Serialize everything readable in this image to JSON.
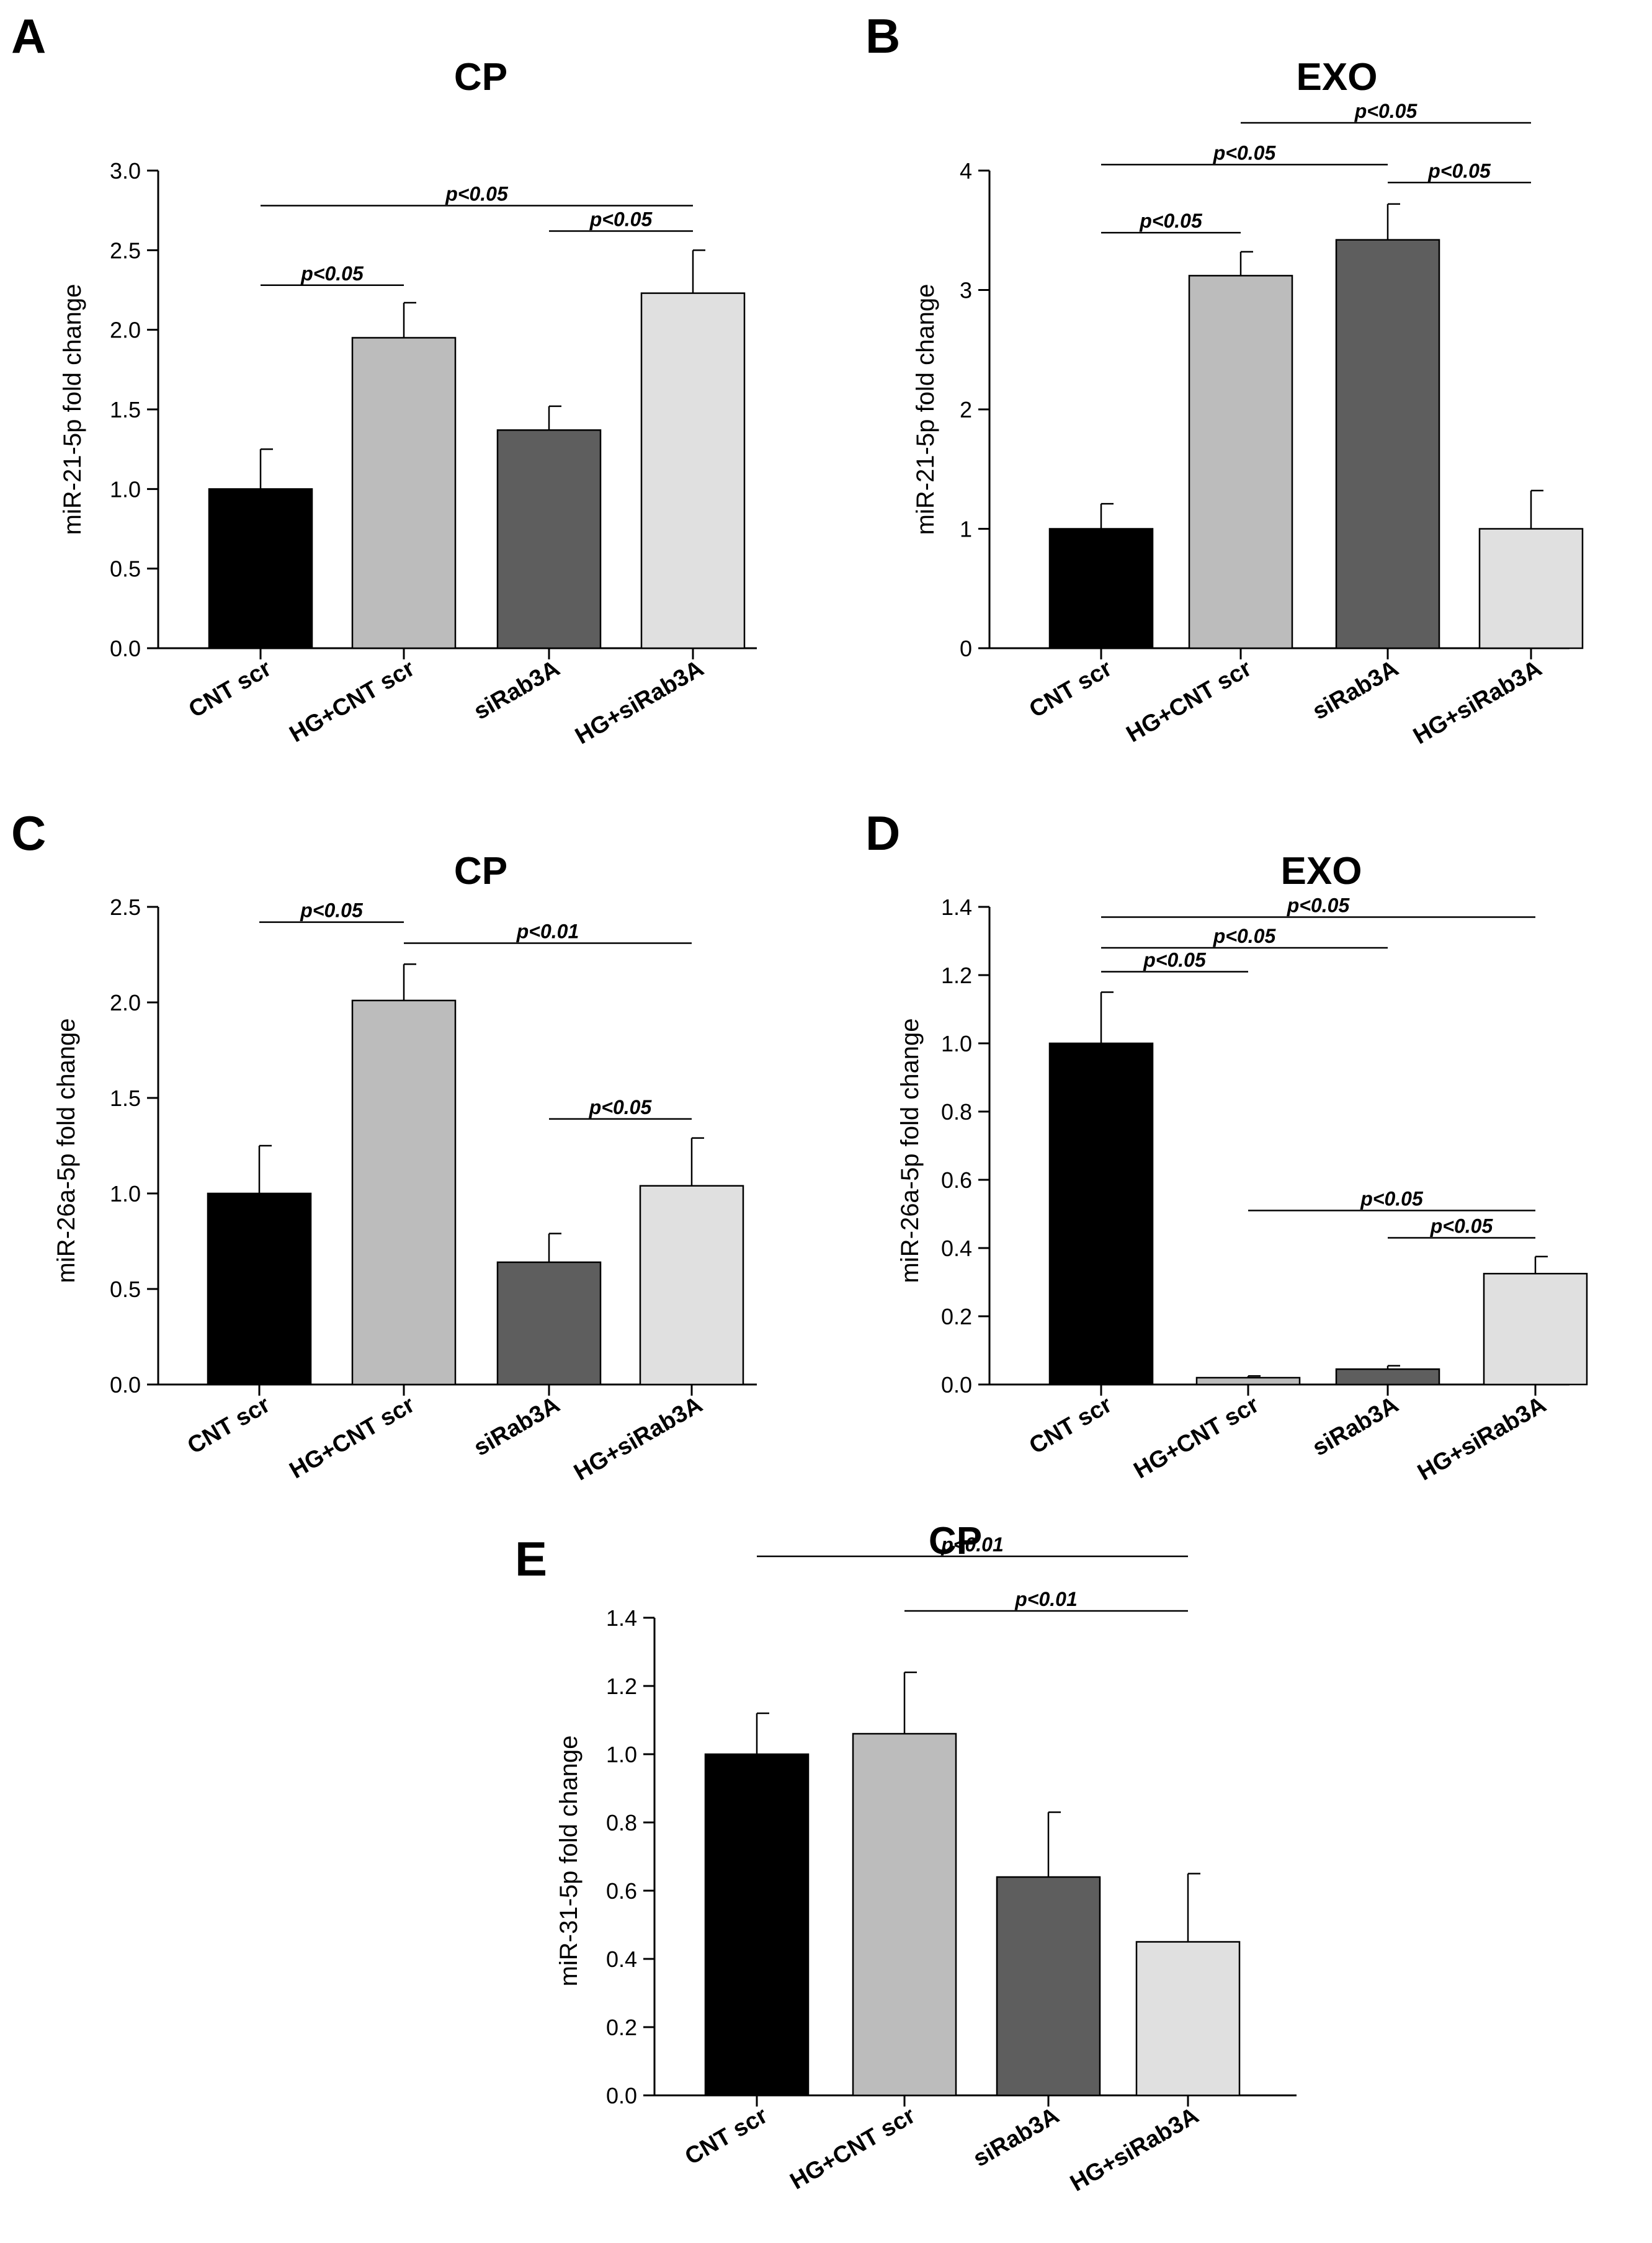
{
  "figure": {
    "colors": {
      "bars": [
        "#000000",
        "#bcbcbc",
        "#5e5e5e",
        "#e0e0e0"
      ],
      "stroke": "#000000"
    }
  },
  "chart_data": [
    {
      "panel": "A",
      "type": "bar",
      "title": "CP",
      "ylabel": "miR-21-5p fold change",
      "xlabel": "",
      "categories": [
        "CNT scr",
        "HG+CNT scr",
        "siRab3A",
        "HG+siRab3A"
      ],
      "values": [
        1.0,
        1.95,
        1.37,
        2.23
      ],
      "errors": [
        0.25,
        0.22,
        0.15,
        0.27
      ],
      "ylim": [
        0,
        3.0
      ],
      "yticks": [
        0.0,
        0.5,
        1.0,
        1.5,
        2.0,
        2.5,
        3.0
      ],
      "ytick_labels": [
        "0.0",
        "0.5",
        "1.0",
        "1.5",
        "2.0",
        "2.5",
        "3.0"
      ],
      "significance": [
        {
          "from": 0,
          "to": 3,
          "y": 2.78,
          "label": "p<0.05"
        },
        {
          "from": 2,
          "to": 3,
          "y": 2.62,
          "label": "p<0.05"
        },
        {
          "from": 0,
          "to": 1,
          "y": 2.28,
          "label": "p<0.05"
        }
      ]
    },
    {
      "panel": "B",
      "type": "bar",
      "title": "EXO",
      "ylabel": "miR-21-5p fold change",
      "xlabel": "",
      "categories": [
        "CNT scr",
        "HG+CNT scr",
        "siRab3A",
        "HG+siRab3A"
      ],
      "values": [
        1.0,
        3.12,
        3.42,
        1.0
      ],
      "errors": [
        0.21,
        0.2,
        0.3,
        0.32
      ],
      "ylim": [
        0,
        4
      ],
      "yticks": [
        0,
        1,
        2,
        3,
        4
      ],
      "ytick_labels": [
        "0",
        "1",
        "2",
        "3",
        "4"
      ],
      "significance": [
        {
          "from": 1,
          "to": 3,
          "y": 4.4,
          "label": "p<0.05"
        },
        {
          "from": 0,
          "to": 2,
          "y": 4.05,
          "label": "p<0.05"
        },
        {
          "from": 2,
          "to": 3,
          "y": 3.9,
          "label": "p<0.05"
        },
        {
          "from": 0,
          "to": 1,
          "y": 3.48,
          "label": "p<0.05"
        }
      ]
    },
    {
      "panel": "C",
      "type": "bar",
      "title": "CP",
      "ylabel": "miR-26a-5p  fold change",
      "xlabel": "",
      "categories": [
        "CNT scr",
        "HG+CNT scr",
        "siRab3A",
        "HG+siRab3A"
      ],
      "values": [
        1.0,
        2.01,
        0.64,
        1.04
      ],
      "errors": [
        0.25,
        0.19,
        0.15,
        0.25
      ],
      "ylim": [
        0,
        2.5
      ],
      "yticks": [
        0.0,
        0.5,
        1.0,
        1.5,
        2.0,
        2.5
      ],
      "ytick_labels": [
        "0.0",
        "0.5",
        "1.0",
        "1.5",
        "2.0",
        "2.5"
      ],
      "significance": [
        {
          "from": 0,
          "to": 1,
          "y": 2.42,
          "label": "p<0.05"
        },
        {
          "from": 1,
          "to": 3,
          "y": 2.31,
          "label": "p<0.01"
        },
        {
          "from": 2,
          "to": 3,
          "y": 1.39,
          "label": "p<0.05"
        }
      ]
    },
    {
      "panel": "D",
      "type": "bar",
      "title": "EXO",
      "ylabel": "miR-26a-5p fold change",
      "xlabel": "",
      "categories": [
        "CNT scr",
        "HG+CNT scr",
        "siRab3A",
        "HG+siRab3A"
      ],
      "values": [
        1.0,
        0.02,
        0.045,
        0.325
      ],
      "errors": [
        0.15,
        0.005,
        0.01,
        0.05
      ],
      "ylim": [
        0,
        1.4
      ],
      "yticks": [
        0.0,
        0.2,
        0.4,
        0.6,
        0.8,
        1.0,
        1.2,
        1.4
      ],
      "ytick_labels": [
        "0.0",
        "0.2",
        "0.4",
        "0.6",
        "0.8",
        "1.0",
        "1.2",
        "1.4"
      ],
      "significance": [
        {
          "from": 0,
          "to": 3,
          "y": 1.37,
          "label": "p<0.05"
        },
        {
          "from": 0,
          "to": 2,
          "y": 1.28,
          "label": "p<0.05"
        },
        {
          "from": 0,
          "to": 1,
          "y": 1.21,
          "label": "p<0.05"
        },
        {
          "from": 1,
          "to": 3,
          "y": 0.51,
          "label": "p<0.05"
        },
        {
          "from": 2,
          "to": 3,
          "y": 0.43,
          "label": "p<0.05"
        }
      ]
    },
    {
      "panel": "E",
      "type": "bar",
      "title": "CP",
      "ylabel": "miR-31-5p fold change",
      "xlabel": "",
      "categories": [
        "CNT scr",
        "HG+CNT scr",
        "siRab3A",
        "HG+siRab3A"
      ],
      "values": [
        1.0,
        1.06,
        0.64,
        0.45
      ],
      "errors": [
        0.12,
        0.18,
        0.19,
        0.2
      ],
      "ylim": [
        0,
        1.4
      ],
      "yticks": [
        0.0,
        0.2,
        0.4,
        0.6,
        0.8,
        1.0,
        1.2,
        1.4
      ],
      "ytick_labels": [
        "0.0",
        "0.2",
        "0.4",
        "0.6",
        "0.8",
        "1.0",
        "1.2",
        "1.4"
      ],
      "significance": [
        {
          "from": 0,
          "to": 3,
          "y": 1.58,
          "label": "p<0.01"
        },
        {
          "from": 1,
          "to": 3,
          "y": 1.42,
          "label": "p<0.01"
        }
      ]
    }
  ]
}
